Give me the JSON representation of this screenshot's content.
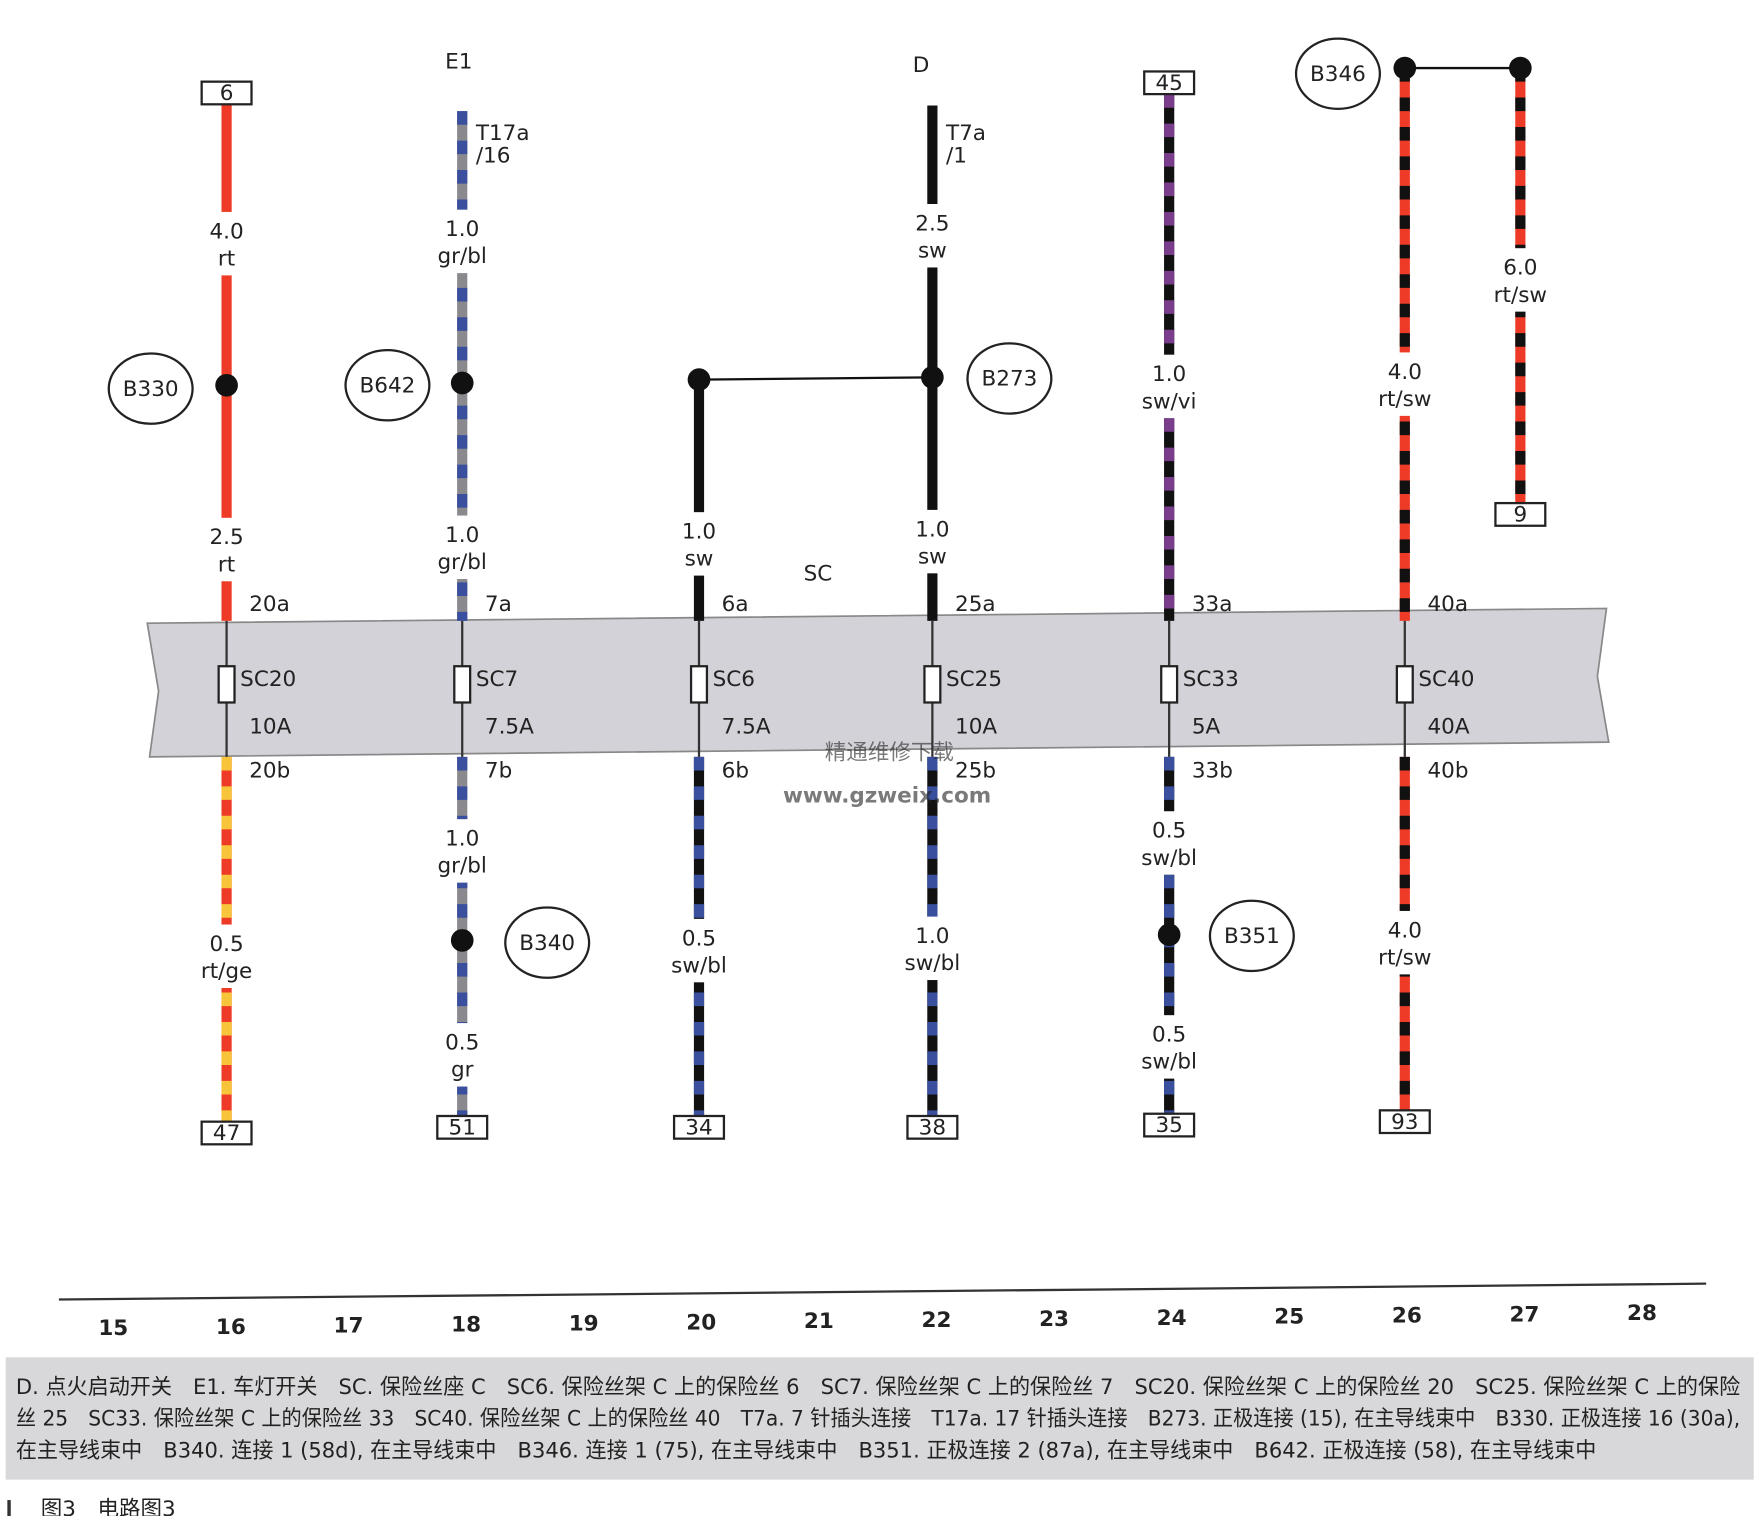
{
  "bar_label": "SC",
  "columns": [
    {
      "terminal_top": "6",
      "wire_labels": [
        [
          "4.0",
          "rt"
        ],
        [
          "2.5",
          "rt"
        ],
        [
          "0.5",
          "rt/ge"
        ]
      ],
      "splices": [
        "B330"
      ],
      "fuse": {
        "name": "SC20",
        "in": "20a",
        "out": "20b",
        "rating": "10A"
      },
      "terminal_bottom": "47"
    },
    {
      "component": "E1",
      "connector": [
        "T17a",
        "/16"
      ],
      "wire_labels": [
        [
          "1.0",
          "gr/bl"
        ],
        [
          "1.0",
          "gr/bl"
        ],
        [
          "1.0",
          "gr/bl"
        ],
        [
          "0.5",
          "gr"
        ]
      ],
      "splices": [
        "B642",
        "B340"
      ],
      "fuse": {
        "name": "SC7",
        "in": "7a",
        "out": "7b",
        "rating": "7.5A"
      },
      "terminal_bottom": "51"
    },
    {
      "wire_labels": [
        [
          "1.0",
          "sw"
        ],
        [
          "0.5",
          "sw/bl"
        ]
      ],
      "fuse": {
        "name": "SC6",
        "in": "6a",
        "out": "6b",
        "rating": "7.5A"
      },
      "terminal_bottom": "34"
    },
    {
      "component": "D",
      "connector": [
        "T7a",
        "/1"
      ],
      "wire_labels": [
        [
          "2.5",
          "sw"
        ],
        [
          "1.0",
          "sw"
        ],
        [
          "1.0",
          "sw/bl"
        ]
      ],
      "splices": [
        "B273"
      ],
      "fuse": {
        "name": "SC25",
        "in": "25a",
        "out": "25b",
        "rating": "10A"
      },
      "terminal_bottom": "38"
    },
    {
      "terminal_top": "45",
      "wire_labels": [
        [
          "1.0",
          "sw/vi"
        ],
        [
          "0.5",
          "sw/bl"
        ],
        [
          "0.5",
          "sw/bl"
        ]
      ],
      "splices": [
        "B351"
      ],
      "fuse": {
        "name": "SC33",
        "in": "33a",
        "out": "33b",
        "rating": "5A"
      },
      "terminal_bottom": "35"
    },
    {
      "wire_labels": [
        [
          "4.0",
          "rt/sw"
        ],
        [
          "4.0",
          "rt/sw"
        ]
      ],
      "splices": [
        "B346"
      ],
      "fuse": {
        "name": "SC40",
        "in": "40a",
        "out": "40b",
        "rating": "40A"
      },
      "terminal_bottom": "93"
    },
    {
      "wire_labels": [
        [
          "6.0",
          "rt/sw"
        ]
      ],
      "terminal_bottom": "9"
    }
  ],
  "watermark": [
    "精通维修下载",
    "www.gzweix.com"
  ],
  "scale": [
    "15",
    "16",
    "17",
    "18",
    "19",
    "20",
    "21",
    "22",
    "23",
    "24",
    "25",
    "26",
    "27",
    "28"
  ],
  "legend": [
    "D. 点火启动开关　E1. 车灯开关　SC. 保险丝座 C　SC6. 保险丝架 C 上的保险丝 6　SC7. 保险丝架 C 上的保险丝 7　SC20. 保险丝架 C 上的保险丝 20　SC25. 保险丝架 C 上的保险",
    "丝 25　SC33. 保险丝架 C 上的保险丝 33　SC40. 保险丝架 C 上的保险丝 40　T7a. 7 针插头连接　T17a. 17 针插头连接　B273. 正极连接 (15), 在主导线束中　B330. 正极连接 16 (30a),",
    "在主导线束中　B340. 连接 1 (58d), 在主导线束中　B346. 连接 1 (75), 在主导线束中　B351. 正极连接 2 (87a), 在主导线束中　B642. 正极连接 (58), 在主导线束中"
  ],
  "caption": "图3　电路图3"
}
